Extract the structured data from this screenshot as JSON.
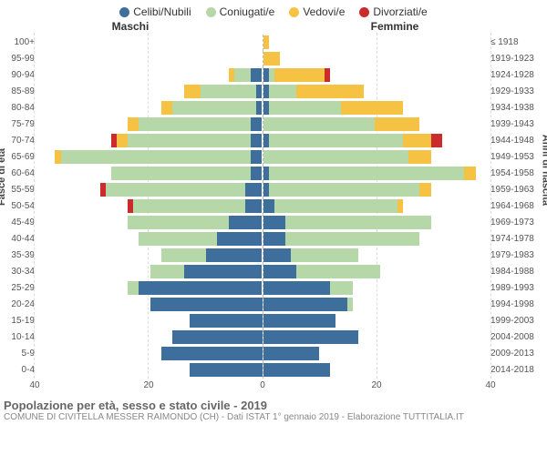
{
  "legend": [
    {
      "label": "Celibi/Nubili",
      "color": "#3e6e9c"
    },
    {
      "label": "Coniugati/e",
      "color": "#b6d7a8"
    },
    {
      "label": "Vedovi/e",
      "color": "#f6c244"
    },
    {
      "label": "Divorziati/e",
      "color": "#cc2b2b"
    }
  ],
  "headers": {
    "male": "Maschi",
    "female": "Femmine"
  },
  "axis_titles": {
    "left": "Fasce di età",
    "right": "Anni di nascita"
  },
  "x_axis": {
    "max": 40,
    "ticks": [
      40,
      20,
      0,
      20,
      40
    ]
  },
  "footer": {
    "title": "Popolazione per età, sesso e stato civile - 2019",
    "subtitle": "COMUNE DI CIVITELLA MESSER RAIMONDO (CH) - Dati ISTAT 1° gennaio 2019 - Elaborazione TUTTITALIA.IT"
  },
  "colors": {
    "celibi": "#3e6e9c",
    "coniugati": "#b6d7a8",
    "vedovi": "#f6c244",
    "divorziati": "#cc2b2b",
    "grid": "#dddddd",
    "bg": "#ffffff"
  },
  "rows": [
    {
      "age": "100+",
      "birth": "≤ 1918",
      "m": {
        "c": 0,
        "co": 0,
        "v": 0,
        "d": 0
      },
      "f": {
        "c": 0,
        "co": 0,
        "v": 1,
        "d": 0
      }
    },
    {
      "age": "95-99",
      "birth": "1919-1923",
      "m": {
        "c": 0,
        "co": 0,
        "v": 0,
        "d": 0
      },
      "f": {
        "c": 0,
        "co": 0,
        "v": 3,
        "d": 0
      }
    },
    {
      "age": "90-94",
      "birth": "1924-1928",
      "m": {
        "c": 2,
        "co": 3,
        "v": 1,
        "d": 0
      },
      "f": {
        "c": 1,
        "co": 1,
        "v": 9,
        "d": 1
      }
    },
    {
      "age": "85-89",
      "birth": "1929-1933",
      "m": {
        "c": 1,
        "co": 10,
        "v": 3,
        "d": 0
      },
      "f": {
        "c": 1,
        "co": 5,
        "v": 12,
        "d": 0
      }
    },
    {
      "age": "80-84",
      "birth": "1934-1938",
      "m": {
        "c": 1,
        "co": 15,
        "v": 2,
        "d": 0
      },
      "f": {
        "c": 1,
        "co": 13,
        "v": 11,
        "d": 0
      }
    },
    {
      "age": "75-79",
      "birth": "1939-1943",
      "m": {
        "c": 2,
        "co": 20,
        "v": 2,
        "d": 0
      },
      "f": {
        "c": 0,
        "co": 20,
        "v": 8,
        "d": 0
      }
    },
    {
      "age": "70-74",
      "birth": "1944-1948",
      "m": {
        "c": 2,
        "co": 22,
        "v": 2,
        "d": 1
      },
      "f": {
        "c": 1,
        "co": 24,
        "v": 5,
        "d": 2
      }
    },
    {
      "age": "65-69",
      "birth": "1949-1953",
      "m": {
        "c": 2,
        "co": 34,
        "v": 1,
        "d": 0
      },
      "f": {
        "c": 0,
        "co": 26,
        "v": 4,
        "d": 0
      }
    },
    {
      "age": "60-64",
      "birth": "1954-1958",
      "m": {
        "c": 2,
        "co": 25,
        "v": 0,
        "d": 0
      },
      "f": {
        "c": 1,
        "co": 35,
        "v": 2,
        "d": 0
      }
    },
    {
      "age": "55-59",
      "birth": "1959-1963",
      "m": {
        "c": 3,
        "co": 25,
        "v": 0,
        "d": 1
      },
      "f": {
        "c": 1,
        "co": 27,
        "v": 2,
        "d": 0
      }
    },
    {
      "age": "50-54",
      "birth": "1964-1968",
      "m": {
        "c": 3,
        "co": 20,
        "v": 0,
        "d": 1
      },
      "f": {
        "c": 2,
        "co": 22,
        "v": 1,
        "d": 0
      }
    },
    {
      "age": "45-49",
      "birth": "1969-1973",
      "m": {
        "c": 6,
        "co": 18,
        "v": 0,
        "d": 0
      },
      "f": {
        "c": 4,
        "co": 26,
        "v": 0,
        "d": 0
      }
    },
    {
      "age": "40-44",
      "birth": "1974-1978",
      "m": {
        "c": 8,
        "co": 14,
        "v": 0,
        "d": 0
      },
      "f": {
        "c": 4,
        "co": 24,
        "v": 0,
        "d": 0
      }
    },
    {
      "age": "35-39",
      "birth": "1979-1983",
      "m": {
        "c": 10,
        "co": 8,
        "v": 0,
        "d": 0
      },
      "f": {
        "c": 5,
        "co": 12,
        "v": 0,
        "d": 0
      }
    },
    {
      "age": "30-34",
      "birth": "1984-1988",
      "m": {
        "c": 14,
        "co": 6,
        "v": 0,
        "d": 0
      },
      "f": {
        "c": 6,
        "co": 15,
        "v": 0,
        "d": 0
      }
    },
    {
      "age": "25-29",
      "birth": "1989-1993",
      "m": {
        "c": 22,
        "co": 2,
        "v": 0,
        "d": 0
      },
      "f": {
        "c": 12,
        "co": 4,
        "v": 0,
        "d": 0
      }
    },
    {
      "age": "20-24",
      "birth": "1994-1998",
      "m": {
        "c": 20,
        "co": 0,
        "v": 0,
        "d": 0
      },
      "f": {
        "c": 15,
        "co": 1,
        "v": 0,
        "d": 0
      }
    },
    {
      "age": "15-19",
      "birth": "1999-2003",
      "m": {
        "c": 13,
        "co": 0,
        "v": 0,
        "d": 0
      },
      "f": {
        "c": 13,
        "co": 0,
        "v": 0,
        "d": 0
      }
    },
    {
      "age": "10-14",
      "birth": "2004-2008",
      "m": {
        "c": 16,
        "co": 0,
        "v": 0,
        "d": 0
      },
      "f": {
        "c": 17,
        "co": 0,
        "v": 0,
        "d": 0
      }
    },
    {
      "age": "5-9",
      "birth": "2009-2013",
      "m": {
        "c": 18,
        "co": 0,
        "v": 0,
        "d": 0
      },
      "f": {
        "c": 10,
        "co": 0,
        "v": 0,
        "d": 0
      }
    },
    {
      "age": "0-4",
      "birth": "2014-2018",
      "m": {
        "c": 13,
        "co": 0,
        "v": 0,
        "d": 0
      },
      "f": {
        "c": 12,
        "co": 0,
        "v": 0,
        "d": 0
      }
    }
  ]
}
